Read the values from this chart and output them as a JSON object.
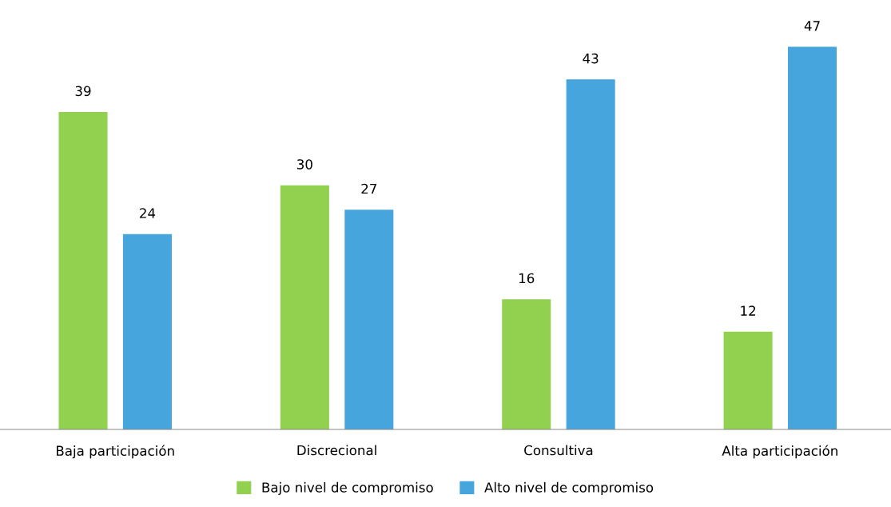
{
  "chart_data": {
    "type": "bar",
    "categories": [
      "Baja participación",
      "Discrecional",
      "Consultiva",
      "Alta participación"
    ],
    "series": [
      {
        "name": "Bajo nivel de compromiso",
        "color": "#92d050",
        "values": [
          39,
          30,
          16,
          12
        ]
      },
      {
        "name": "Alto nivel de compromiso",
        "color": "#45a5dc",
        "values": [
          24,
          27,
          43,
          47
        ]
      }
    ],
    "data_labels": true,
    "legend": "bottom",
    "grid": false
  }
}
